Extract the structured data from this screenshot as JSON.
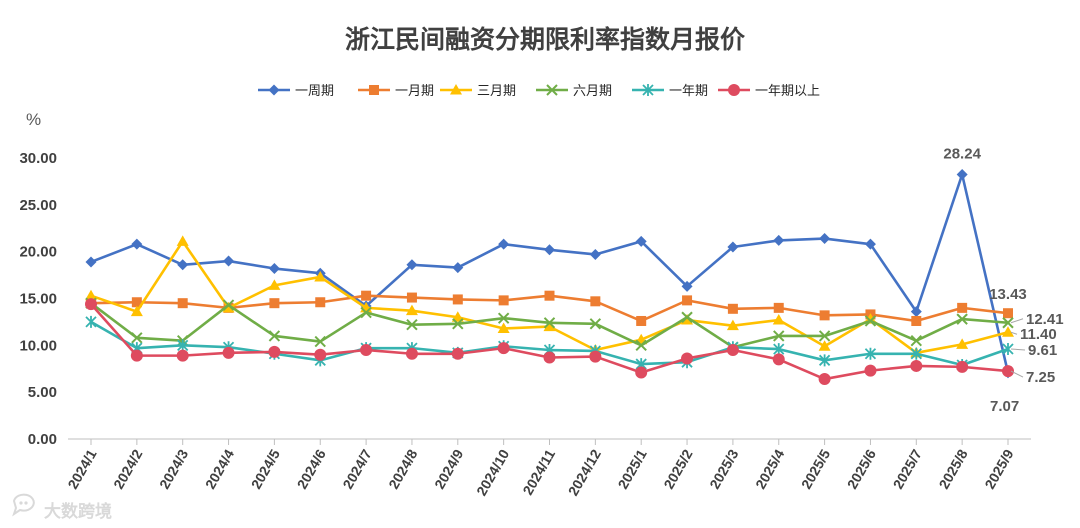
{
  "chart_data": {
    "type": "line",
    "title": "浙江民间融资分期限利率指数月报价",
    "ylabel": "%",
    "xlabel": "",
    "ylim": [
      0,
      30
    ],
    "yticks": [
      "0.00",
      "5.00",
      "10.00",
      "15.00",
      "20.00",
      "25.00",
      "30.00"
    ],
    "legend_position": "top",
    "grid": false,
    "categories": [
      "2024/1",
      "2024/2",
      "2024/3",
      "2024/4",
      "2024/5",
      "2024/6",
      "2024/7",
      "2024/8",
      "2024/9",
      "2024/10",
      "2024/11",
      "2024/12",
      "2025/1",
      "2025/2",
      "2025/3",
      "2025/4",
      "2025/5",
      "2025/6",
      "2025/7",
      "2025/8",
      "2025/9"
    ],
    "series": [
      {
        "name": "一周期",
        "color": "#4472c4",
        "marker": "diamond",
        "values": [
          18.9,
          20.8,
          18.6,
          19.0,
          18.2,
          17.7,
          14.2,
          18.6,
          18.3,
          20.8,
          20.2,
          19.7,
          21.1,
          16.3,
          20.5,
          21.2,
          21.4,
          20.8,
          13.6,
          28.24,
          7.07
        ]
      },
      {
        "name": "一月期",
        "color": "#ed7d31",
        "marker": "square",
        "values": [
          14.5,
          14.6,
          14.5,
          14.0,
          14.5,
          14.6,
          15.3,
          15.1,
          14.9,
          14.8,
          15.3,
          14.7,
          12.6,
          14.8,
          13.9,
          14.0,
          13.2,
          13.3,
          12.6,
          14.0,
          13.43
        ]
      },
      {
        "name": "三月期",
        "color": "#ffc000",
        "marker": "triangle",
        "values": [
          15.3,
          13.6,
          21.1,
          14.0,
          16.4,
          17.3,
          14.0,
          13.7,
          13.0,
          11.8,
          12.0,
          9.5,
          10.6,
          12.7,
          12.1,
          12.7,
          9.9,
          12.8,
          9.2,
          10.1,
          11.4
        ]
      },
      {
        "name": "六月期",
        "color": "#70ad47",
        "marker": "x",
        "values": [
          14.5,
          10.8,
          10.5,
          14.3,
          11.0,
          10.4,
          13.5,
          12.2,
          12.3,
          12.9,
          12.4,
          12.3,
          10.0,
          13.0,
          9.8,
          11.0,
          11.0,
          12.6,
          10.5,
          12.8,
          12.41
        ]
      },
      {
        "name": "一年期",
        "color": "#36b3b0",
        "marker": "star",
        "values": [
          12.5,
          9.7,
          10.0,
          9.8,
          9.1,
          8.4,
          9.7,
          9.7,
          9.2,
          9.9,
          9.5,
          9.4,
          8.0,
          8.2,
          9.8,
          9.6,
          8.4,
          9.1,
          9.1,
          7.9,
          9.61
        ]
      },
      {
        "name": "一年期以上",
        "color": "#de4b5f",
        "marker": "circle",
        "values": [
          14.4,
          8.9,
          8.9,
          9.2,
          9.3,
          9.0,
          9.5,
          9.1,
          9.1,
          9.7,
          8.7,
          8.8,
          7.1,
          8.6,
          9.5,
          8.5,
          6.4,
          7.3,
          7.8,
          7.7,
          7.25
        ]
      }
    ],
    "data_labels": [
      {
        "series": "一周期",
        "category": "2025/8",
        "text": "28.24"
      },
      {
        "series": "一月期",
        "category": "2025/9",
        "text": "13.43"
      },
      {
        "series": "六月期",
        "category": "2025/9",
        "text": "12.41"
      },
      {
        "series": "三月期",
        "category": "2025/9",
        "text": "11.40"
      },
      {
        "series": "一年期",
        "category": "2025/9",
        "text": "9.61"
      },
      {
        "series": "一年期以上",
        "category": "2025/9",
        "text": "7.25"
      },
      {
        "series": "一周期",
        "category": "2025/9",
        "text": "7.07"
      }
    ]
  },
  "watermark": {
    "text": "大数跨境",
    "icon": "chat-bubble-logo-icon"
  }
}
